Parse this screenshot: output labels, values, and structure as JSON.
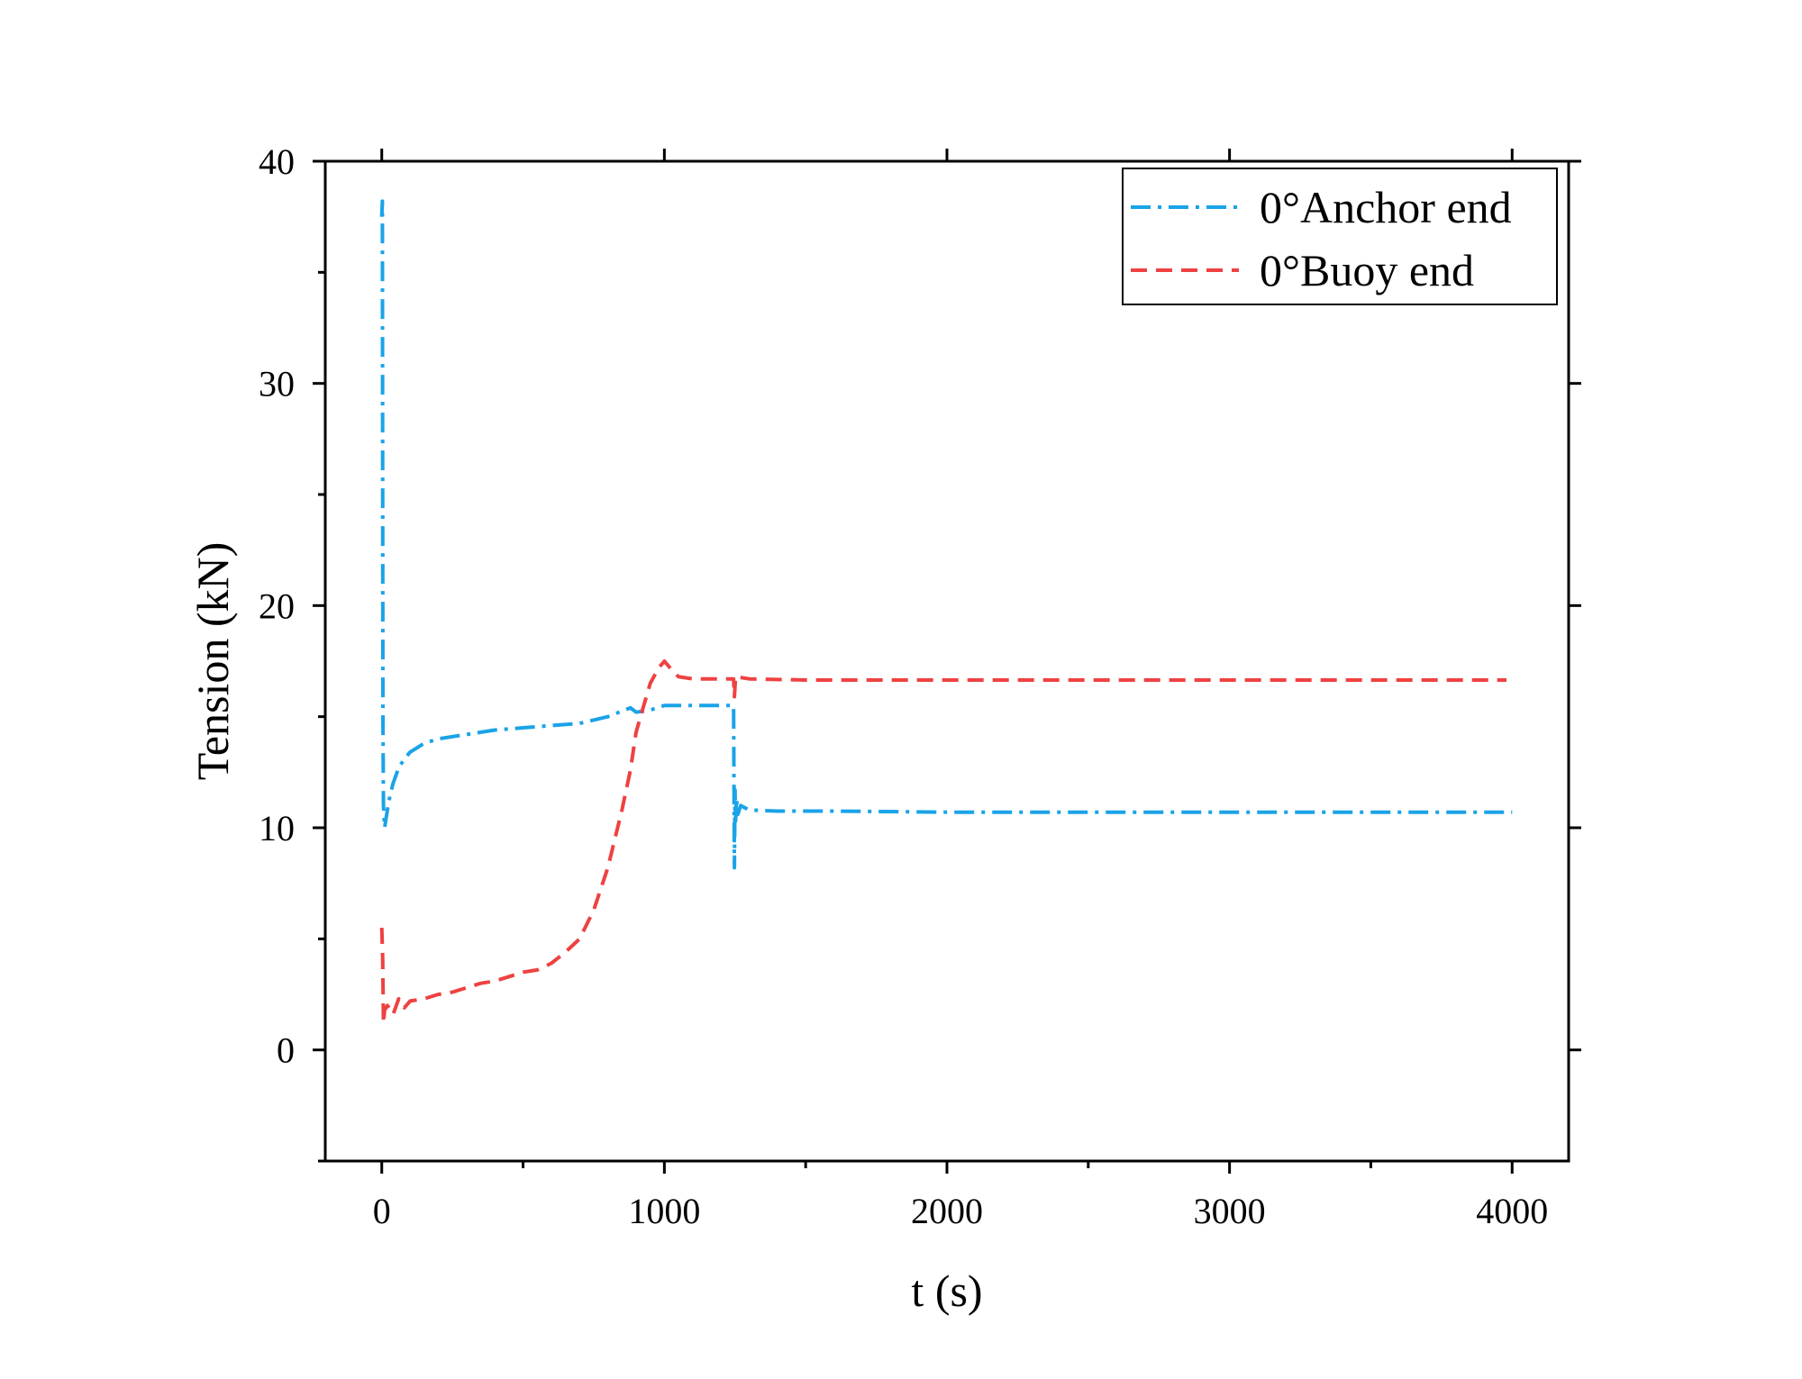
{
  "chart_data": {
    "type": "line",
    "title": "",
    "xlabel": "t (s)",
    "ylabel": "Tension (kN)",
    "xlim": [
      -200,
      4200
    ],
    "ylim": [
      -5,
      40
    ],
    "xticks": [
      0,
      1000,
      2000,
      3000,
      4000
    ],
    "xtick_labels": [
      "0",
      "1000",
      "2000",
      "3000",
      "4000"
    ],
    "yticks": [
      0,
      10,
      20,
      30,
      40
    ],
    "ytick_labels": [
      "0",
      "10",
      "20",
      "30",
      "40"
    ],
    "legend_position": "top-right",
    "series": [
      {
        "name": "0°Anchor end",
        "color": "#1aa3e8",
        "dash": "dash-dot",
        "x": [
          0,
          2,
          4,
          6,
          10,
          15,
          20,
          30,
          40,
          60,
          80,
          100,
          150,
          200,
          300,
          400,
          500,
          600,
          700,
          800,
          880,
          900,
          950,
          1000,
          1100,
          1200,
          1245,
          1248,
          1250,
          1252,
          1255,
          1260,
          1270,
          1300,
          1400,
          1600,
          2000,
          2500,
          3000,
          3500,
          4000
        ],
        "y": [
          37.5,
          38.2,
          15,
          11,
          10,
          10.4,
          10.8,
          11.5,
          12,
          12.7,
          13.1,
          13.4,
          13.8,
          14,
          14.2,
          14.4,
          14.5,
          14.6,
          14.7,
          15,
          15.4,
          15.2,
          15.3,
          15.5,
          15.5,
          15.5,
          15.5,
          8.2,
          11.7,
          10.3,
          11.3,
          10.6,
          11,
          10.8,
          10.75,
          10.75,
          10.7,
          10.7,
          10.7,
          10.7,
          10.7
        ]
      },
      {
        "name": "0°Buoy end",
        "color": "#ef4141",
        "dash": "dashed",
        "x": [
          0,
          3,
          6,
          10,
          20,
          40,
          60,
          80,
          100,
          150,
          200,
          250,
          300,
          350,
          400,
          450,
          500,
          550,
          600,
          650,
          700,
          750,
          800,
          850,
          880,
          900,
          920,
          950,
          980,
          1000,
          1020,
          1050,
          1100,
          1150,
          1200,
          1245,
          1248,
          1252,
          1300,
          1500,
          2000,
          2500,
          3000,
          3500,
          3980
        ],
        "y": [
          5.5,
          4.2,
          1.2,
          1.8,
          2.0,
          1.6,
          2.3,
          1.9,
          2.2,
          2.3,
          2.5,
          2.6,
          2.8,
          3.0,
          3.1,
          3.3,
          3.5,
          3.6,
          3.9,
          4.4,
          5.0,
          6.3,
          8.2,
          10.8,
          12.6,
          14.3,
          15.2,
          16.5,
          17.2,
          17.5,
          17.2,
          16.8,
          16.7,
          16.7,
          16.7,
          16.7,
          15.9,
          16.8,
          16.7,
          16.65,
          16.65,
          16.65,
          16.65,
          16.65,
          16.65
        ]
      }
    ]
  }
}
